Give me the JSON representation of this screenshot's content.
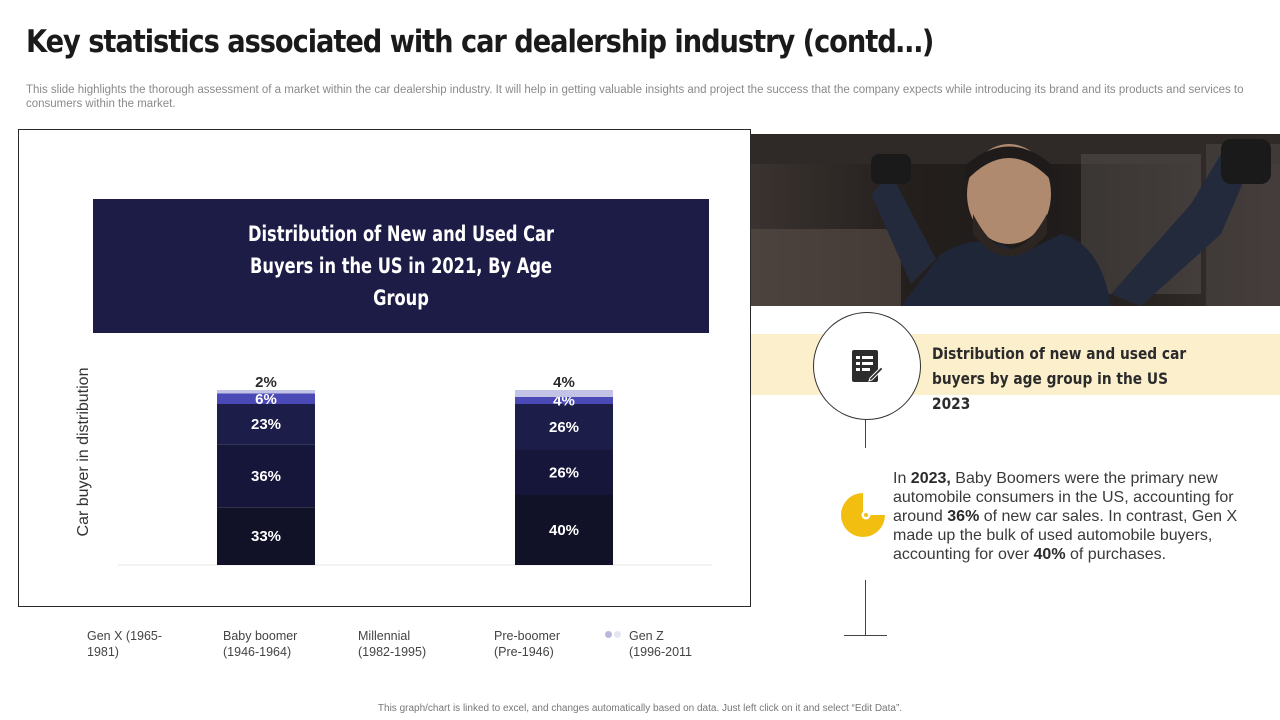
{
  "page": {
    "title": "Key statistics associated with car dealership industry (contd…)",
    "subtitle": "This slide highlights the thorough assessment of a market within the car dealership industry. It will help in getting valuable insights and project the success that the company expects while introducing its brand and its products and services to consumers within the market.",
    "footnote": "This graph/chart is linked to excel, and changes automatically based on data. Just left click on it and select “Edit Data”."
  },
  "chart_data": {
    "type": "bar",
    "stacked": true,
    "title": "Distribution of New and Used Car Buyers in the US in 2021, By Age Group",
    "ylabel": "Car buyer in distribution",
    "xlabel": "",
    "categories": [
      "",
      ""
    ],
    "series": [
      {
        "name": "Gen X (1965-1981)",
        "values": [
          33,
          40
        ],
        "labels": [
          "33%",
          "40%"
        ],
        "color": "#111127"
      },
      {
        "name": "Baby boomer (1946-1964)",
        "values": [
          36,
          26
        ],
        "labels": [
          "36%",
          "26%"
        ],
        "color": "#16163a"
      },
      {
        "name": "Millennial (1982-1995)",
        "values": [
          23,
          26
        ],
        "labels": [
          "23%",
          "26%"
        ],
        "color": "#1d1d4a"
      },
      {
        "name": "Pre-boomer (Pre-1946)",
        "values": [
          6,
          4
        ],
        "labels": [
          "6%",
          "4%"
        ],
        "color": "#4a49b5"
      },
      {
        "name": "Gen Z (1996-2011",
        "values": [
          2,
          4
        ],
        "labels": [
          "2%",
          "4%"
        ],
        "color": "#c3c3e6"
      }
    ],
    "legend": [
      {
        "line1": "Gen X (1965-",
        "line2": "1981)"
      },
      {
        "line1": "Baby boomer",
        "line2": "(1946-1964)"
      },
      {
        "line1": "Millennial",
        "line2": "(1982-1995)"
      },
      {
        "line1": "Pre-boomer",
        "line2": "(Pre-1946)"
      },
      {
        "line1": "Gen Z",
        "line2": "(1996-2011"
      }
    ],
    "legend_position": "bottom",
    "grid": false
  },
  "side": {
    "banner_text": "Distribution of new and used car buyers by age group in the US 2023",
    "icon": "report-checklist-icon",
    "pie_icon": "pie-chart-icon",
    "body": {
      "p1": "In ",
      "year": "2023,",
      "p2": " Baby Boomers were the primary new automobile consumers in the US, accounting for around ",
      "pct1": "36%",
      "p3": " of new car sales. In contrast, Gen X made up the bulk of used automobile buyers, accounting for over ",
      "pct2": "40%",
      "p4": " of purchases."
    }
  },
  "colors": {
    "header_bg": "#1c1c47",
    "banner_bg": "#fcefcc",
    "accent_yellow": "#f2bf11"
  }
}
